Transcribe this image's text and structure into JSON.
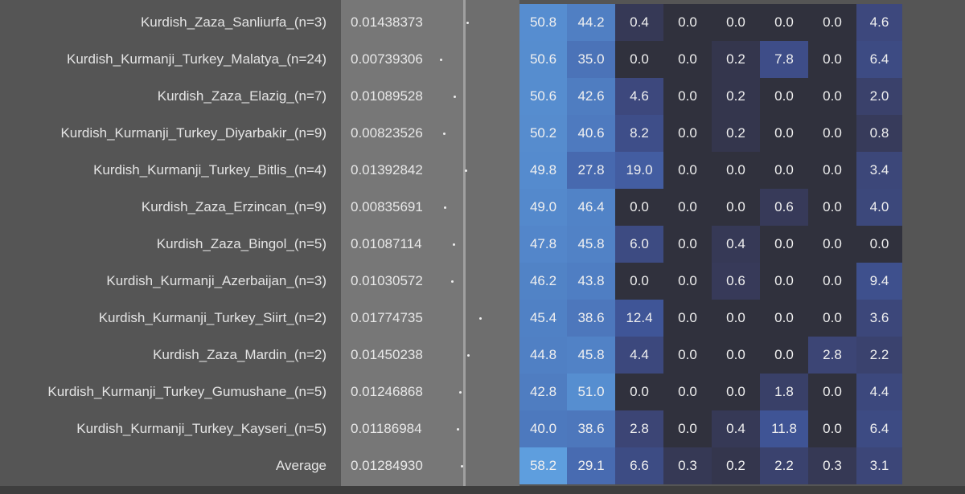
{
  "table": {
    "rows": [
      [
        "Kurdish_Zaza_Sanliurfa_(n=3)",
        "0.01438373",
        "50.8",
        "44.2",
        "0.4",
        "0.0",
        "0.0",
        "0.0",
        "0.0",
        "4.6"
      ],
      [
        "Kurdish_Kurmanji_Turkey_Malatya_(n=24)",
        "0.00739306",
        "50.6",
        "35.0",
        "0.0",
        "0.0",
        "0.2",
        "7.8",
        "0.0",
        "6.4"
      ],
      [
        "Kurdish_Zaza_Elazig_(n=7)",
        "0.01089528",
        "50.6",
        "42.6",
        "4.6",
        "0.0",
        "0.2",
        "0.0",
        "0.0",
        "2.0"
      ],
      [
        "Kurdish_Kurmanji_Turkey_Diyarbakir_(n=9)",
        "0.00823526",
        "50.2",
        "40.6",
        "8.2",
        "0.0",
        "0.2",
        "0.0",
        "0.0",
        "0.8"
      ],
      [
        "Kurdish_Kurmanji_Turkey_Bitlis_(n=4)",
        "0.01392842",
        "49.8",
        "27.8",
        "19.0",
        "0.0",
        "0.0",
        "0.0",
        "0.0",
        "3.4"
      ],
      [
        "Kurdish_Zaza_Erzincan_(n=9)",
        "0.00835691",
        "49.0",
        "46.4",
        "0.0",
        "0.0",
        "0.0",
        "0.6",
        "0.0",
        "4.0"
      ],
      [
        "Kurdish_Zaza_Bingol_(n=5)",
        "0.01087114",
        "47.8",
        "45.8",
        "6.0",
        "0.0",
        "0.4",
        "0.0",
        "0.0",
        "0.0"
      ],
      [
        "Kurdish_Kurmanji_Azerbaijan_(n=3)",
        "0.01030572",
        "46.2",
        "43.8",
        "0.0",
        "0.0",
        "0.6",
        "0.0",
        "0.0",
        "9.4"
      ],
      [
        "Kurdish_Kurmanji_Turkey_Siirt_(n=2)",
        "0.01774735",
        "45.4",
        "38.6",
        "12.4",
        "0.0",
        "0.0",
        "0.0",
        "0.0",
        "3.6"
      ],
      [
        "Kurdish_Zaza_Mardin_(n=2)",
        "0.01450238",
        "44.8",
        "45.8",
        "4.4",
        "0.0",
        "0.0",
        "0.0",
        "2.8",
        "2.2"
      ],
      [
        "Kurdish_Kurmanji_Turkey_Gumushane_(n=5)",
        "0.01246868",
        "42.8",
        "51.0",
        "0.0",
        "0.0",
        "0.0",
        "1.8",
        "0.0",
        "4.4"
      ],
      [
        "Kurdish_Kurmanji_Turkey_Kayseri_(n=5)",
        "0.01186984",
        "40.0",
        "38.6",
        "2.8",
        "0.0",
        "0.4",
        "11.8",
        "0.0",
        "6.4"
      ],
      [
        "Average",
        "0.01284930",
        "58.2",
        "29.1",
        "6.6",
        "0.3",
        "0.2",
        "2.2",
        "0.3",
        "3.1"
      ]
    ]
  }
}
